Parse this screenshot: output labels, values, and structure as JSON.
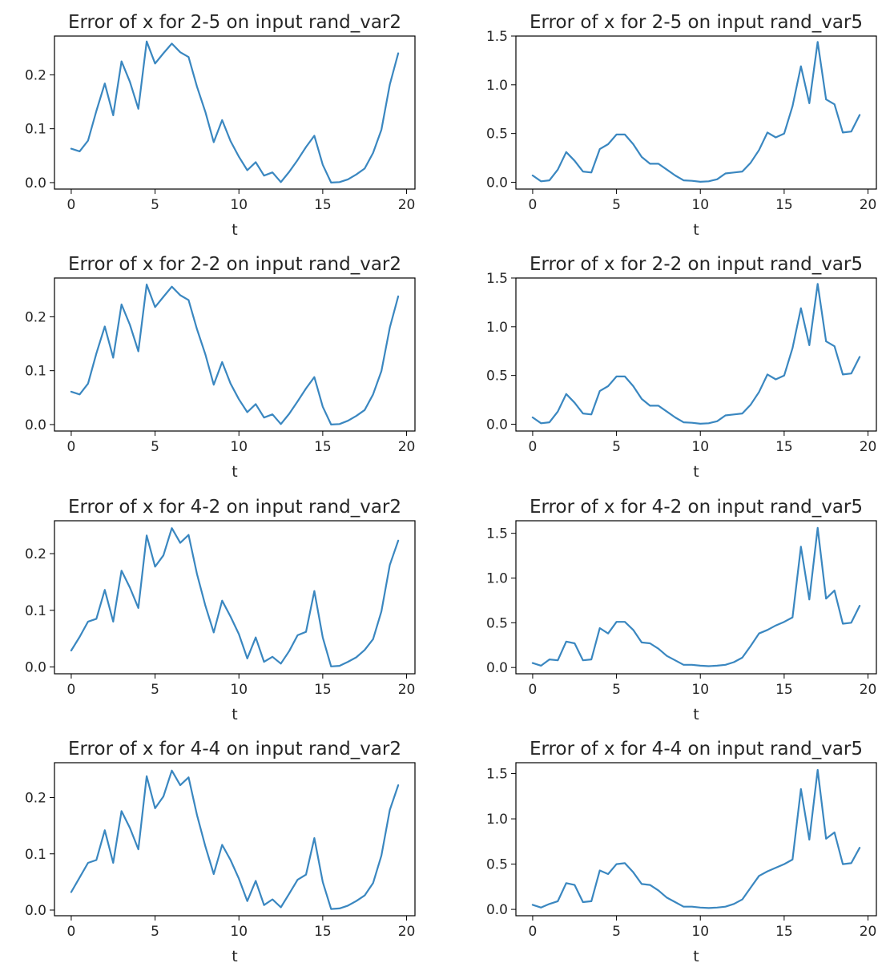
{
  "colors": {
    "series": "#3a87c0"
  },
  "chart_data": [
    {
      "type": "line",
      "title": "Error of x for 2-5 on input rand_var2",
      "xlabel": "t",
      "ylabel": "",
      "xlim": [
        -1,
        20.5
      ],
      "ylim": [
        -0.012,
        0.272
      ],
      "xticks": [
        0,
        5,
        10,
        15,
        20
      ],
      "yticks": [
        0.0,
        0.1,
        0.2
      ],
      "ytick_labels": [
        "0.0",
        "0.1",
        "0.2"
      ],
      "grid": false,
      "series": [
        {
          "x": [
            0,
            0.5,
            1,
            1.5,
            2,
            2.5,
            3,
            3.5,
            4,
            4.5,
            5,
            5.5,
            6,
            6.5,
            7,
            7.5,
            8,
            8.5,
            9,
            9.5,
            10,
            10.5,
            11,
            11.5,
            12,
            12.5,
            13,
            13.5,
            14,
            14.5,
            15,
            15.5,
            16,
            16.5,
            17,
            17.5,
            18,
            18.5,
            19,
            19.5
          ],
          "y": [
            0.063,
            0.058,
            0.078,
            0.133,
            0.184,
            0.125,
            0.225,
            0.187,
            0.137,
            0.262,
            0.221,
            0.24,
            0.258,
            0.242,
            0.233,
            0.178,
            0.131,
            0.075,
            0.116,
            0.077,
            0.048,
            0.023,
            0.038,
            0.013,
            0.019,
            0.001,
            0.02,
            0.042,
            0.066,
            0.087,
            0.033,
            0.0,
            0.001,
            0.006,
            0.015,
            0.026,
            0.055,
            0.098,
            0.182,
            0.24
          ]
        }
      ]
    },
    {
      "type": "line",
      "title": "Error of x for 2-5 on input rand_var5",
      "xlabel": "t",
      "ylabel": "",
      "xlim": [
        -1,
        20.5
      ],
      "ylim": [
        -0.07,
        1.5
      ],
      "xticks": [
        0,
        5,
        10,
        15,
        20
      ],
      "yticks": [
        0.0,
        0.5,
        1.0,
        1.5
      ],
      "ytick_labels": [
        "0.0",
        "0.5",
        "1.0",
        "1.5"
      ],
      "grid": false,
      "series": [
        {
          "x": [
            0,
            0.5,
            1,
            1.5,
            2,
            2.5,
            3,
            3.5,
            4,
            4.5,
            5,
            5.5,
            6,
            6.5,
            7,
            7.5,
            8,
            8.5,
            9,
            9.5,
            10,
            10.5,
            11,
            11.5,
            12,
            12.5,
            13,
            13.5,
            14,
            14.5,
            15,
            15.5,
            16,
            16.5,
            17,
            17.5,
            18,
            18.5,
            19,
            19.5
          ],
          "y": [
            0.07,
            0.01,
            0.02,
            0.13,
            0.31,
            0.22,
            0.11,
            0.1,
            0.34,
            0.39,
            0.49,
            0.49,
            0.39,
            0.26,
            0.19,
            0.19,
            0.13,
            0.07,
            0.02,
            0.015,
            0.005,
            0.01,
            0.03,
            0.09,
            0.1,
            0.11,
            0.2,
            0.33,
            0.51,
            0.46,
            0.5,
            0.78,
            1.19,
            0.81,
            1.44,
            0.85,
            0.8,
            0.51,
            0.52,
            0.69
          ]
        }
      ]
    },
    {
      "type": "line",
      "title": "Error of x for 2-2 on input rand_var2",
      "xlabel": "t",
      "ylabel": "",
      "xlim": [
        -1,
        20.5
      ],
      "ylim": [
        -0.012,
        0.272
      ],
      "xticks": [
        0,
        5,
        10,
        15,
        20
      ],
      "yticks": [
        0.0,
        0.1,
        0.2
      ],
      "ytick_labels": [
        "0.0",
        "0.1",
        "0.2"
      ],
      "grid": false,
      "series": [
        {
          "x": [
            0,
            0.5,
            1,
            1.5,
            2,
            2.5,
            3,
            3.5,
            4,
            4.5,
            5,
            5.5,
            6,
            6.5,
            7,
            7.5,
            8,
            8.5,
            9,
            9.5,
            10,
            10.5,
            11,
            11.5,
            12,
            12.5,
            13,
            13.5,
            14,
            14.5,
            15,
            15.5,
            16,
            16.5,
            17,
            17.5,
            18,
            18.5,
            19,
            19.5
          ],
          "y": [
            0.061,
            0.056,
            0.076,
            0.132,
            0.182,
            0.124,
            0.223,
            0.185,
            0.136,
            0.26,
            0.218,
            0.237,
            0.256,
            0.24,
            0.231,
            0.177,
            0.13,
            0.074,
            0.116,
            0.076,
            0.047,
            0.023,
            0.038,
            0.013,
            0.019,
            0.001,
            0.02,
            0.043,
            0.067,
            0.088,
            0.033,
            0.0,
            0.001,
            0.007,
            0.016,
            0.027,
            0.056,
            0.099,
            0.18,
            0.238
          ]
        }
      ]
    },
    {
      "type": "line",
      "title": "Error of x for 2-2 on input rand_var5",
      "xlabel": "t",
      "ylabel": "",
      "xlim": [
        -1,
        20.5
      ],
      "ylim": [
        -0.07,
        1.5
      ],
      "xticks": [
        0,
        5,
        10,
        15,
        20
      ],
      "yticks": [
        0.0,
        0.5,
        1.0,
        1.5
      ],
      "ytick_labels": [
        "0.0",
        "0.5",
        "1.0",
        "1.5"
      ],
      "grid": false,
      "series": [
        {
          "x": [
            0,
            0.5,
            1,
            1.5,
            2,
            2.5,
            3,
            3.5,
            4,
            4.5,
            5,
            5.5,
            6,
            6.5,
            7,
            7.5,
            8,
            8.5,
            9,
            9.5,
            10,
            10.5,
            11,
            11.5,
            12,
            12.5,
            13,
            13.5,
            14,
            14.5,
            15,
            15.5,
            16,
            16.5,
            17,
            17.5,
            18,
            18.5,
            19,
            19.5
          ],
          "y": [
            0.07,
            0.01,
            0.02,
            0.13,
            0.31,
            0.22,
            0.11,
            0.1,
            0.34,
            0.39,
            0.49,
            0.49,
            0.39,
            0.26,
            0.19,
            0.19,
            0.13,
            0.07,
            0.02,
            0.015,
            0.005,
            0.01,
            0.03,
            0.09,
            0.1,
            0.11,
            0.2,
            0.33,
            0.51,
            0.46,
            0.5,
            0.78,
            1.19,
            0.81,
            1.44,
            0.85,
            0.8,
            0.51,
            0.52,
            0.69
          ]
        }
      ]
    },
    {
      "type": "line",
      "title": "Error of x for 4-2 on input rand_var2",
      "xlabel": "t",
      "ylabel": "",
      "xlim": [
        -1,
        20.5
      ],
      "ylim": [
        -0.012,
        0.258
      ],
      "xticks": [
        0,
        5,
        10,
        15,
        20
      ],
      "yticks": [
        0.0,
        0.1,
        0.2
      ],
      "ytick_labels": [
        "0.0",
        "0.1",
        "0.2"
      ],
      "grid": false,
      "series": [
        {
          "x": [
            0,
            0.5,
            1,
            1.5,
            2,
            2.5,
            3,
            3.5,
            4,
            4.5,
            5,
            5.5,
            6,
            6.5,
            7,
            7.5,
            8,
            8.5,
            9,
            9.5,
            10,
            10.5,
            11,
            11.5,
            12,
            12.5,
            13,
            13.5,
            14,
            14.5,
            15,
            15.5,
            16,
            16.5,
            17,
            17.5,
            18,
            18.5,
            19,
            19.5
          ],
          "y": [
            0.029,
            0.053,
            0.08,
            0.085,
            0.136,
            0.08,
            0.17,
            0.14,
            0.104,
            0.232,
            0.177,
            0.197,
            0.245,
            0.219,
            0.233,
            0.164,
            0.108,
            0.061,
            0.117,
            0.089,
            0.058,
            0.015,
            0.052,
            0.009,
            0.018,
            0.006,
            0.028,
            0.056,
            0.062,
            0.134,
            0.052,
            0.001,
            0.002,
            0.009,
            0.017,
            0.03,
            0.049,
            0.098,
            0.18,
            0.223
          ]
        }
      ]
    },
    {
      "type": "line",
      "title": "Error of x for 4-2 on input rand_var5",
      "xlabel": "t",
      "ylabel": "",
      "xlim": [
        -1,
        20.5
      ],
      "ylim": [
        -0.07,
        1.64
      ],
      "xticks": [
        0,
        5,
        10,
        15,
        20
      ],
      "yticks": [
        0.0,
        0.5,
        1.0,
        1.5
      ],
      "ytick_labels": [
        "0.0",
        "0.5",
        "1.0",
        "1.5"
      ],
      "grid": false,
      "series": [
        {
          "x": [
            0,
            0.5,
            1,
            1.5,
            2,
            2.5,
            3,
            3.5,
            4,
            4.5,
            5,
            5.5,
            6,
            6.5,
            7,
            7.5,
            8,
            8.5,
            9,
            9.5,
            10,
            10.5,
            11,
            11.5,
            12,
            12.5,
            13,
            13.5,
            14,
            14.5,
            15,
            15.5,
            16,
            16.5,
            17,
            17.5,
            18,
            18.5,
            19,
            19.5
          ],
          "y": [
            0.05,
            0.02,
            0.09,
            0.08,
            0.29,
            0.27,
            0.08,
            0.09,
            0.44,
            0.38,
            0.51,
            0.51,
            0.42,
            0.28,
            0.27,
            0.21,
            0.13,
            0.08,
            0.03,
            0.03,
            0.02,
            0.015,
            0.02,
            0.03,
            0.06,
            0.11,
            0.24,
            0.38,
            0.42,
            0.47,
            0.51,
            0.56,
            1.35,
            0.76,
            1.56,
            0.77,
            0.86,
            0.49,
            0.5,
            0.69
          ]
        }
      ]
    },
    {
      "type": "line",
      "title": "Error of x for 4-4 on input rand_var2",
      "xlabel": "t",
      "ylabel": "",
      "xlim": [
        -1,
        20.5
      ],
      "ylim": [
        -0.01,
        0.262
      ],
      "xticks": [
        0,
        5,
        10,
        15,
        20
      ],
      "yticks": [
        0.0,
        0.1,
        0.2
      ],
      "ytick_labels": [
        "0.0",
        "0.1",
        "0.2"
      ],
      "grid": false,
      "series": [
        {
          "x": [
            0,
            0.5,
            1,
            1.5,
            2,
            2.5,
            3,
            3.5,
            4,
            4.5,
            5,
            5.5,
            6,
            6.5,
            7,
            7.5,
            8,
            8.5,
            9,
            9.5,
            10,
            10.5,
            11,
            11.5,
            12,
            12.5,
            13,
            13.5,
            14,
            14.5,
            15,
            15.5,
            16,
            16.5,
            17,
            17.5,
            18,
            18.5,
            19,
            19.5
          ],
          "y": [
            0.032,
            0.058,
            0.084,
            0.089,
            0.142,
            0.084,
            0.176,
            0.146,
            0.108,
            0.238,
            0.181,
            0.202,
            0.248,
            0.222,
            0.236,
            0.169,
            0.113,
            0.064,
            0.116,
            0.089,
            0.056,
            0.016,
            0.052,
            0.009,
            0.019,
            0.005,
            0.029,
            0.054,
            0.063,
            0.128,
            0.05,
            0.002,
            0.003,
            0.008,
            0.016,
            0.026,
            0.048,
            0.097,
            0.178,
            0.222
          ]
        }
      ]
    },
    {
      "type": "line",
      "title": "Error of x for 4-4 on input rand_var5",
      "xlabel": "t",
      "ylabel": "",
      "xlim": [
        -1,
        20.5
      ],
      "ylim": [
        -0.07,
        1.62
      ],
      "xticks": [
        0,
        5,
        10,
        15,
        20
      ],
      "yticks": [
        0.0,
        0.5,
        1.0,
        1.5
      ],
      "ytick_labels": [
        "0.0",
        "0.5",
        "1.0",
        "1.5"
      ],
      "grid": false,
      "series": [
        {
          "x": [
            0,
            0.5,
            1,
            1.5,
            2,
            2.5,
            3,
            3.5,
            4,
            4.5,
            5,
            5.5,
            6,
            6.5,
            7,
            7.5,
            8,
            8.5,
            9,
            9.5,
            10,
            10.5,
            11,
            11.5,
            12,
            12.5,
            13,
            13.5,
            14,
            14.5,
            15,
            15.5,
            16,
            16.5,
            17,
            17.5,
            18,
            18.5,
            19,
            19.5
          ],
          "y": [
            0.05,
            0.02,
            0.06,
            0.09,
            0.29,
            0.27,
            0.08,
            0.09,
            0.43,
            0.39,
            0.5,
            0.51,
            0.41,
            0.28,
            0.27,
            0.21,
            0.13,
            0.08,
            0.03,
            0.03,
            0.02,
            0.015,
            0.02,
            0.03,
            0.06,
            0.11,
            0.24,
            0.37,
            0.42,
            0.46,
            0.5,
            0.55,
            1.33,
            0.77,
            1.54,
            0.78,
            0.85,
            0.5,
            0.51,
            0.68
          ]
        }
      ]
    }
  ]
}
